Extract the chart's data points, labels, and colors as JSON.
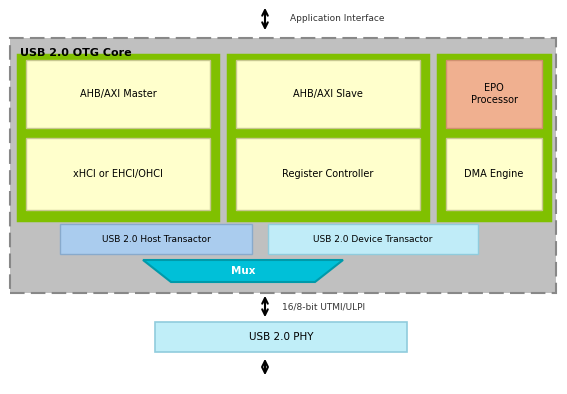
{
  "fig_width": 5.67,
  "fig_height": 3.94,
  "dpi": 100,
  "bg_color": "#ffffff",
  "title_app_interface": "Application Interface",
  "title_usb_core": "USB 2.0 OTG Core",
  "label_utmi": "16/8-bit UTMI/ULPI",
  "label_phy": "USB 2.0 PHY",
  "label_mux": "Mux",
  "label_host_trans": "USB 2.0 Host Transactor",
  "label_dev_trans": "USB 2.0 Device Transactor",
  "label_ahb_master": "AHB/AXI Master",
  "label_xhci": "xHCI or EHCI/OHCI",
  "label_ahb_slave": "AHB/AXI Slave",
  "label_reg_ctrl": "Register Controller",
  "label_epo": "EPO\nProcessor",
  "label_dma": "DMA Engine",
  "gray_core_bg": "#c0c0c0",
  "gray_core_edge": "#888888",
  "green_bg": "#80c000",
  "yellow_bg": "#ffffcc",
  "yellow_edge": "#c8c890",
  "orange_bg": "#f0b090",
  "orange_edge": "#d09070",
  "host_trans_bg": "#aaccee",
  "host_trans_edge": "#88aacc",
  "dev_trans_bg": "#c0ecf8",
  "dev_trans_edge": "#90ccdd",
  "cyan_mux_bg": "#00c0d8",
  "cyan_mux_edge": "#009aaa",
  "phy_bg": "#c0eef8",
  "phy_edge": "#90ccdd",
  "text_dark": "#333333",
  "text_black": "#000000"
}
